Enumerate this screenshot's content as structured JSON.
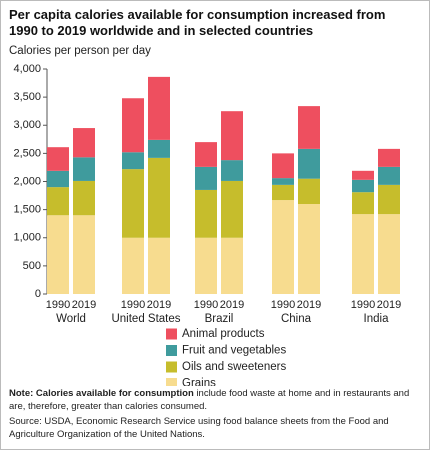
{
  "chart_data": {
    "type": "stacked-bar",
    "title": "Per capita calories available for consumption increased from 1990 to 2019 worldwide and in selected countries",
    "y_label": "Calories per person per day",
    "categories": [
      "1990",
      "2019",
      "1990",
      "2019",
      "1990",
      "2019",
      "1990",
      "2019",
      "1990",
      "2019"
    ],
    "groups": [
      "World",
      "United States",
      "Brazil",
      "China",
      "India"
    ],
    "series": [
      {
        "name": "Grains",
        "color": "#f7dc8f",
        "values": [
          1400,
          1400,
          1000,
          1000,
          1000,
          1000,
          1670,
          1600,
          1420,
          1420
        ]
      },
      {
        "name": "Oils and sweeteners",
        "color": "#c6bd2c",
        "values": [
          500,
          610,
          1220,
          1420,
          850,
          1010,
          270,
          450,
          390,
          520
        ]
      },
      {
        "name": "Fruit and vegetables",
        "color": "#3f9b9d",
        "values": [
          290,
          420,
          300,
          320,
          410,
          370,
          120,
          530,
          220,
          320
        ]
      },
      {
        "name": "Animal products",
        "color": "#ee4f5f",
        "values": [
          420,
          520,
          960,
          1120,
          440,
          870,
          440,
          760,
          160,
          320
        ]
      }
    ],
    "ylim": [
      0,
      4000
    ],
    "yticks": [
      0,
      500,
      {
        "value": 1000,
        "label": "1,000"
      },
      {
        "value": 1500,
        "label": "1,500"
      },
      {
        "value": 2000,
        "label": "2,000"
      },
      {
        "value": 2500,
        "label": "2,500"
      },
      {
        "value": 3000,
        "label": "3,000"
      },
      {
        "value": 3500,
        "label": "3,500"
      },
      {
        "value": 4000,
        "label": "4,000"
      }
    ],
    "note": {
      "label": "Note:",
      "bold": "Calories available for consumption",
      "text": " include food waste at home and in restaurants and are, therefore, greater than calories consumed."
    },
    "source": "Source: USDA, Economic Research Service using food balance sheets from the Food and Agriculture Organization of the United Nations."
  }
}
